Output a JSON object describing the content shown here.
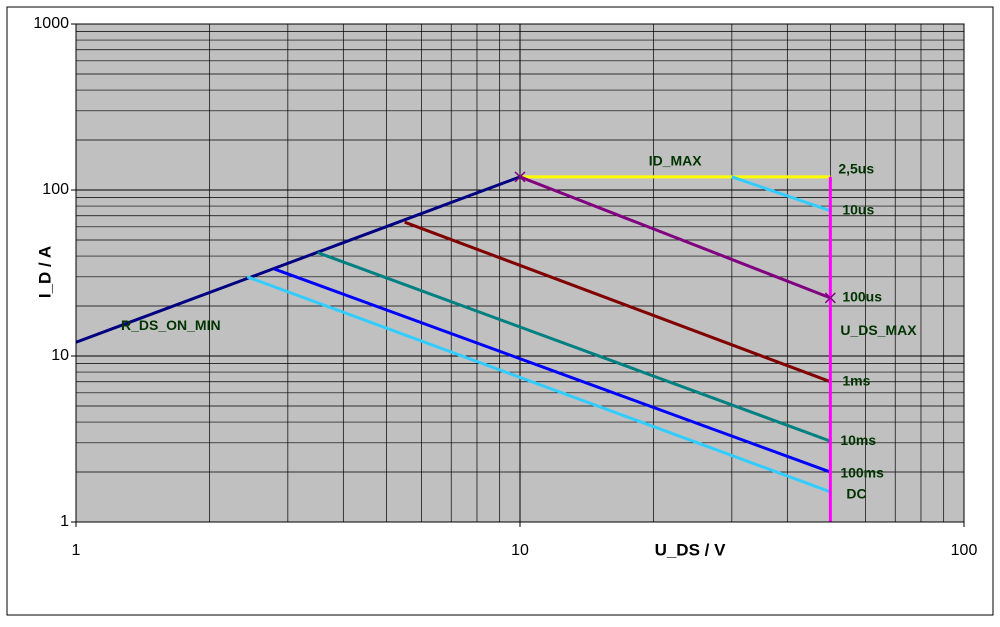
{
  "chart_data": {
    "type": "line",
    "xlabel": "U_DS / V",
    "ylabel": "I_D / A",
    "xscale": "log",
    "yscale": "log",
    "xlim": [
      1,
      100
    ],
    "ylim": [
      1,
      1000
    ],
    "xticks": [
      1,
      10,
      100
    ],
    "yticks": [
      1,
      10,
      100,
      1000
    ],
    "xminor": [
      2,
      3,
      4,
      5,
      6,
      7,
      8,
      9,
      20,
      30,
      40,
      50,
      60,
      70,
      80,
      90
    ],
    "yminor": [
      2,
      3,
      4,
      5,
      6,
      7,
      8,
      9,
      20,
      30,
      40,
      50,
      60,
      70,
      80,
      90,
      200,
      300,
      400,
      500,
      600,
      700,
      800,
      900
    ],
    "grid": true,
    "series": [
      {
        "name": "R_DS_ON_MIN",
        "color": "#000080",
        "x": [
          1,
          10
        ],
        "values": [
          12.1,
          120
        ]
      },
      {
        "name": "ID_MAX",
        "color": "#ffff00",
        "x": [
          10,
          50
        ],
        "values": [
          120,
          120
        ]
      },
      {
        "name": "10us",
        "color": "#33ccff",
        "x": [
          30,
          50
        ],
        "values": [
          120,
          75
        ]
      },
      {
        "name": "100us",
        "color": "#800080",
        "x": [
          10,
          50
        ],
        "values": [
          120,
          22.4
        ]
      },
      {
        "name": "1ms",
        "color": "#800000",
        "x": [
          5.5,
          50
        ],
        "values": [
          64,
          7
        ]
      },
      {
        "name": "10ms",
        "color": "#008080",
        "x": [
          3.5,
          50
        ],
        "values": [
          42,
          3.07
        ]
      },
      {
        "name": "100ms",
        "color": "#0000ff",
        "x": [
          2.8,
          50
        ],
        "values": [
          33.4,
          2.0
        ]
      },
      {
        "name": "DC",
        "color": "#33ccff",
        "x": [
          2.43,
          50
        ],
        "values": [
          30,
          1.52
        ]
      },
      {
        "name": "U_DS_MAX",
        "color": "#ff00ff",
        "x": [
          50,
          50
        ],
        "values": [
          1,
          120
        ]
      }
    ],
    "annotations": [
      "2,5us"
    ]
  }
}
